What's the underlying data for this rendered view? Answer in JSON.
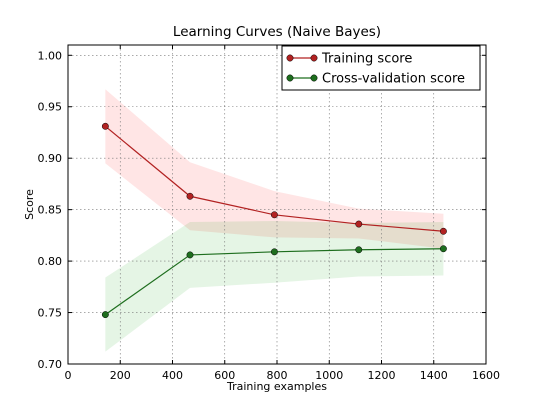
{
  "chart_data": {
    "type": "line",
    "title": "Learning Curves (Naive Bayes)",
    "xlabel": "Training examples",
    "ylabel": "Score",
    "xlim": [
      0,
      1600
    ],
    "ylim": [
      0.7,
      1.01
    ],
    "xticks": [
      0,
      200,
      400,
      600,
      800,
      1000,
      1200,
      1400,
      1600
    ],
    "xtick_labels": [
      "0",
      "200",
      "400",
      "600",
      "800",
      "1000",
      "1200",
      "1400",
      "1600"
    ],
    "yticks": [
      0.7,
      0.75,
      0.8,
      0.85,
      0.9,
      0.95,
      1.0
    ],
    "ytick_labels": [
      "0.70",
      "0.75",
      "0.80",
      "0.85",
      "0.90",
      "0.95",
      "1.00"
    ],
    "grid": true,
    "legend_position": "top-right",
    "x": [
      143,
      467,
      790,
      1113,
      1437
    ],
    "series": [
      {
        "name": "Training score",
        "color": "#b22222",
        "band_color": "#ff0000",
        "values": [
          0.931,
          0.863,
          0.845,
          0.836,
          0.829
        ],
        "std_low": [
          0.895,
          0.83,
          0.823,
          0.822,
          0.812
        ],
        "std_high": [
          0.967,
          0.896,
          0.868,
          0.851,
          0.846
        ]
      },
      {
        "name": "Cross-validation score",
        "color": "#1e6e1e",
        "band_color": "#00a000",
        "values": [
          0.748,
          0.806,
          0.809,
          0.811,
          0.812
        ],
        "std_low": [
          0.712,
          0.774,
          0.779,
          0.785,
          0.786
        ],
        "std_high": [
          0.784,
          0.838,
          0.839,
          0.837,
          0.838
        ]
      }
    ]
  }
}
